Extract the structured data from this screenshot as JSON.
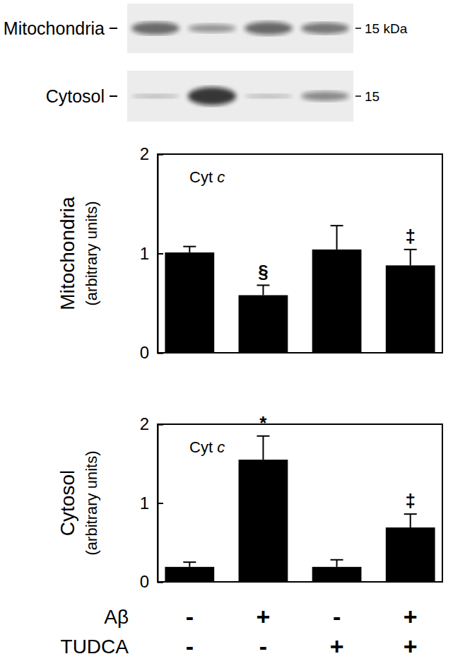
{
  "blot": {
    "rows": [
      {
        "label": "Mitochondria",
        "size": "15 kDa"
      },
      {
        "label": "Cytosol",
        "size": "15"
      }
    ]
  },
  "chart_data": [
    {
      "type": "bar",
      "annotation": "Cyt c",
      "ylabel": [
        "Mitochondria",
        "(arbitrary units)"
      ],
      "categories": [
        null,
        null,
        null,
        null
      ],
      "values": [
        1.01,
        0.58,
        1.04,
        0.88
      ],
      "errors": [
        0.06,
        0.1,
        0.24,
        0.16
      ],
      "significance": [
        null,
        "§",
        null,
        "‡"
      ],
      "color": "#000000",
      "ylim": [
        0,
        2
      ],
      "yticks": [
        0,
        1,
        2
      ]
    },
    {
      "type": "bar",
      "annotation": "Cyt c",
      "ylabel": [
        "Cytosol",
        "(arbitrary units)"
      ],
      "categories": [
        null,
        null,
        null,
        null
      ],
      "values": [
        0.19,
        1.55,
        0.19,
        0.69
      ],
      "errors": [
        0.06,
        0.3,
        0.09,
        0.17
      ],
      "significance": [
        null,
        "*",
        null,
        "‡"
      ],
      "color": "#000000",
      "ylim": [
        0,
        2
      ],
      "yticks": [
        0,
        1,
        2
      ]
    }
  ],
  "treatments": [
    {
      "name": "Aβ",
      "levels": [
        "-",
        "+",
        "-",
        "+"
      ]
    },
    {
      "name": "TUDCA",
      "levels": [
        "-",
        "-",
        "+",
        "+"
      ]
    }
  ]
}
